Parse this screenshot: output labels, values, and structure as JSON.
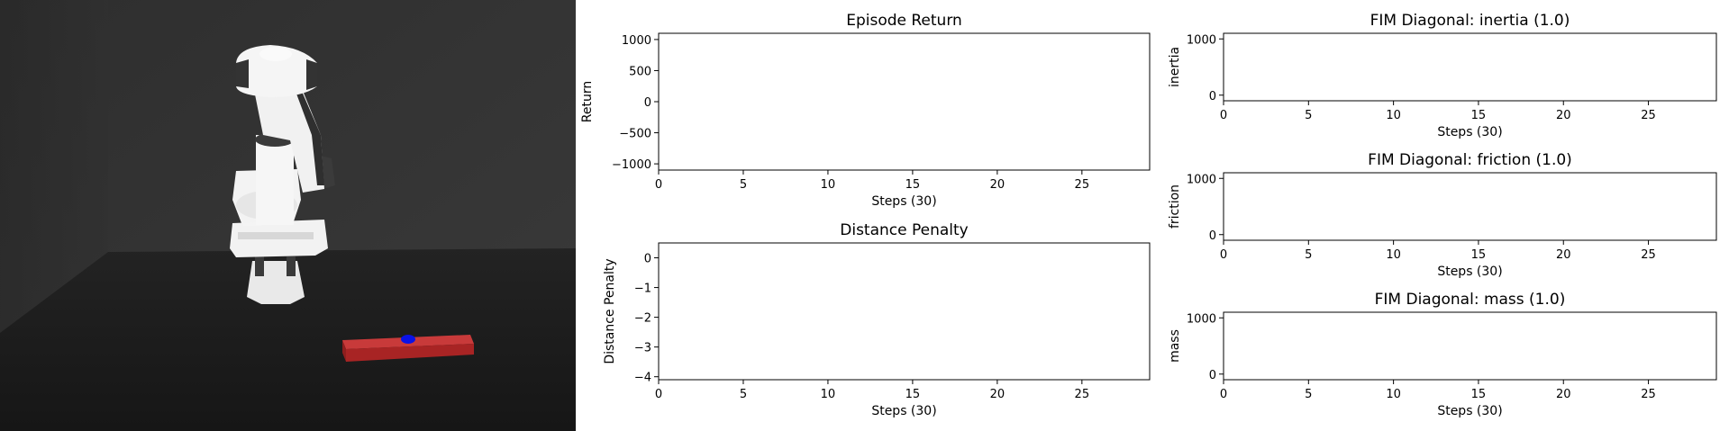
{
  "simulation_view": {
    "robot": "robot-arm",
    "object": "red-bar",
    "target_marker": "blue-dot",
    "colors": {
      "wall": "#333333",
      "floor": "#1c1c1c",
      "bar": "#b52a2a",
      "marker": "#0a12e6"
    }
  },
  "chart_data": [
    {
      "id": "return",
      "type": "line",
      "title": "Episode Return",
      "xlabel": "Steps (30)",
      "ylabel": "Return",
      "xlim": [
        0,
        29
      ],
      "ylim": [
        -1100,
        1100
      ],
      "xticks": [
        0,
        5,
        10,
        15,
        20,
        25
      ],
      "yticks": [
        1000,
        500,
        0,
        -500,
        -1000
      ],
      "ytick_labels": [
        "1000",
        "500",
        "0",
        "−500",
        "−1000"
      ],
      "x": [],
      "y": []
    },
    {
      "id": "distance",
      "type": "line",
      "title": "Distance Penalty",
      "xlabel": "Steps (30)",
      "ylabel": "Distance Penalty",
      "xlim": [
        0,
        29
      ],
      "ylim": [
        -4.1,
        0.5
      ],
      "xticks": [
        0,
        5,
        10,
        15,
        20,
        25
      ],
      "yticks": [
        0,
        -1,
        -2,
        -3,
        -4
      ],
      "ytick_labels": [
        "0",
        "−1",
        "−2",
        "−3",
        "−4"
      ],
      "x": [],
      "y": []
    },
    {
      "id": "fim_inertia",
      "type": "line",
      "title": "FIM Diagonal: inertia (1.0)",
      "xlabel": "Steps (30)",
      "ylabel": "inertia",
      "xlim": [
        0,
        29
      ],
      "ylim": [
        -100,
        1100
      ],
      "xticks": [
        0,
        5,
        10,
        15,
        20,
        25
      ],
      "yticks": [
        1000,
        0
      ],
      "ytick_labels": [
        "1000",
        "0"
      ],
      "x": [],
      "y": []
    },
    {
      "id": "fim_friction",
      "type": "line",
      "title": "FIM Diagonal: friction (1.0)",
      "xlabel": "Steps (30)",
      "ylabel": "friction",
      "xlim": [
        0,
        29
      ],
      "ylim": [
        -100,
        1100
      ],
      "xticks": [
        0,
        5,
        10,
        15,
        20,
        25
      ],
      "yticks": [
        1000,
        0
      ],
      "ytick_labels": [
        "1000",
        "0"
      ],
      "x": [],
      "y": []
    },
    {
      "id": "fim_mass",
      "type": "line",
      "title": "FIM Diagonal: mass (1.0)",
      "xlabel": "Steps (30)",
      "ylabel": "mass",
      "xlim": [
        0,
        29
      ],
      "ylim": [
        -100,
        1100
      ],
      "xticks": [
        0,
        5,
        10,
        15,
        20,
        25
      ],
      "yticks": [
        1000,
        0
      ],
      "ytick_labels": [
        "1000",
        "0"
      ],
      "x": [],
      "y": []
    }
  ]
}
